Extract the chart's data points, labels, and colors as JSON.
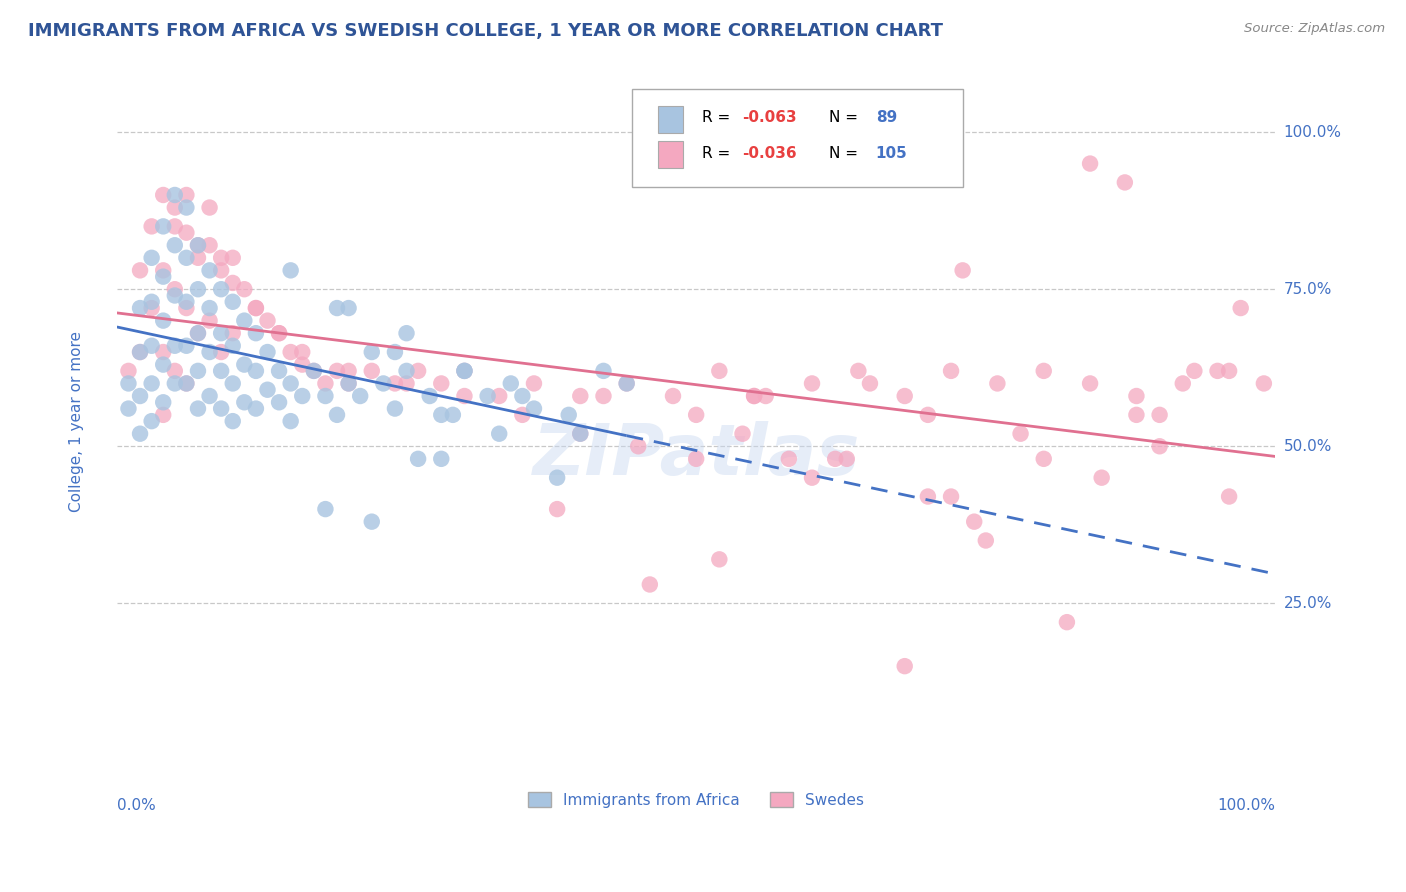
{
  "title": "IMMIGRANTS FROM AFRICA VS SWEDISH COLLEGE, 1 YEAR OR MORE CORRELATION CHART",
  "source_text": "Source: ZipAtlas.com",
  "ylabel": "College, 1 year or more",
  "x_label_bottom_left": "0.0%",
  "x_label_bottom_right": "100.0%",
  "y_tick_labels": [
    "25.0%",
    "50.0%",
    "75.0%",
    "100.0%"
  ],
  "y_tick_values": [
    0.25,
    0.5,
    0.75,
    1.0
  ],
  "legend_label1": "Immigrants from Africa",
  "legend_label2": "Swedes",
  "R1": -0.063,
  "N1": 89,
  "R2": -0.036,
  "N2": 105,
  "color1": "#a8c4e0",
  "color2": "#f4a8c0",
  "trend_color1": "#4472c4",
  "trend_color2": "#e07090",
  "watermark": "ZIPatlas",
  "background_color": "#ffffff",
  "grid_color": "#c8c8c8",
  "title_color": "#2F5496",
  "axis_label_color": "#4472c4",
  "scatter1_x": [
    0.01,
    0.01,
    0.02,
    0.02,
    0.02,
    0.02,
    0.03,
    0.03,
    0.03,
    0.03,
    0.03,
    0.04,
    0.04,
    0.04,
    0.04,
    0.04,
    0.05,
    0.05,
    0.05,
    0.05,
    0.05,
    0.06,
    0.06,
    0.06,
    0.06,
    0.06,
    0.07,
    0.07,
    0.07,
    0.07,
    0.07,
    0.08,
    0.08,
    0.08,
    0.08,
    0.09,
    0.09,
    0.09,
    0.09,
    0.1,
    0.1,
    0.1,
    0.1,
    0.11,
    0.11,
    0.11,
    0.12,
    0.12,
    0.12,
    0.13,
    0.13,
    0.14,
    0.14,
    0.15,
    0.15,
    0.16,
    0.17,
    0.18,
    0.19,
    0.2,
    0.21,
    0.22,
    0.23,
    0.24,
    0.25,
    0.27,
    0.28,
    0.3,
    0.32,
    0.34,
    0.36,
    0.39,
    0.42,
    0.28,
    0.33,
    0.38,
    0.2,
    0.25,
    0.3,
    0.18,
    0.22,
    0.26,
    0.15,
    0.19,
    0.24,
    0.29,
    0.35,
    0.4,
    0.44
  ],
  "scatter1_y": [
    0.6,
    0.56,
    0.72,
    0.65,
    0.58,
    0.52,
    0.8,
    0.73,
    0.66,
    0.6,
    0.54,
    0.85,
    0.77,
    0.7,
    0.63,
    0.57,
    0.9,
    0.82,
    0.74,
    0.66,
    0.6,
    0.88,
    0.8,
    0.73,
    0.66,
    0.6,
    0.82,
    0.75,
    0.68,
    0.62,
    0.56,
    0.78,
    0.72,
    0.65,
    0.58,
    0.75,
    0.68,
    0.62,
    0.56,
    0.73,
    0.66,
    0.6,
    0.54,
    0.7,
    0.63,
    0.57,
    0.68,
    0.62,
    0.56,
    0.65,
    0.59,
    0.62,
    0.57,
    0.6,
    0.54,
    0.58,
    0.62,
    0.58,
    0.55,
    0.6,
    0.58,
    0.65,
    0.6,
    0.56,
    0.62,
    0.58,
    0.55,
    0.62,
    0.58,
    0.6,
    0.56,
    0.55,
    0.62,
    0.48,
    0.52,
    0.45,
    0.72,
    0.68,
    0.62,
    0.4,
    0.38,
    0.48,
    0.78,
    0.72,
    0.65,
    0.55,
    0.58,
    0.52,
    0.6
  ],
  "scatter2_x": [
    0.01,
    0.02,
    0.02,
    0.03,
    0.03,
    0.04,
    0.04,
    0.04,
    0.05,
    0.05,
    0.05,
    0.06,
    0.06,
    0.06,
    0.07,
    0.07,
    0.08,
    0.08,
    0.09,
    0.09,
    0.1,
    0.1,
    0.11,
    0.12,
    0.13,
    0.14,
    0.15,
    0.16,
    0.17,
    0.18,
    0.19,
    0.2,
    0.22,
    0.24,
    0.26,
    0.28,
    0.3,
    0.33,
    0.36,
    0.4,
    0.44,
    0.48,
    0.52,
    0.56,
    0.6,
    0.64,
    0.68,
    0.72,
    0.76,
    0.8,
    0.84,
    0.88,
    0.92,
    0.96,
    0.99,
    0.5,
    0.55,
    0.62,
    0.7,
    0.78,
    0.85,
    0.9,
    0.95,
    0.04,
    0.05,
    0.06,
    0.07,
    0.08,
    0.09,
    0.1,
    0.12,
    0.14,
    0.16,
    0.2,
    0.25,
    0.3,
    0.35,
    0.4,
    0.45,
    0.5,
    0.6,
    0.7,
    0.8,
    0.9,
    0.55,
    0.65,
    0.75,
    0.38,
    0.46,
    0.54,
    0.63,
    0.72,
    0.82,
    0.52,
    0.68,
    0.84,
    0.93,
    0.73,
    0.87,
    0.97,
    0.42,
    0.58,
    0.74,
    0.88,
    0.96
  ],
  "scatter2_y": [
    0.62,
    0.78,
    0.65,
    0.85,
    0.72,
    0.9,
    0.78,
    0.65,
    0.88,
    0.75,
    0.62,
    0.84,
    0.72,
    0.6,
    0.8,
    0.68,
    0.82,
    0.7,
    0.78,
    0.65,
    0.8,
    0.68,
    0.75,
    0.72,
    0.7,
    0.68,
    0.65,
    0.63,
    0.62,
    0.6,
    0.62,
    0.6,
    0.62,
    0.6,
    0.62,
    0.6,
    0.62,
    0.58,
    0.6,
    0.58,
    0.6,
    0.58,
    0.62,
    0.58,
    0.6,
    0.62,
    0.58,
    0.62,
    0.6,
    0.62,
    0.6,
    0.58,
    0.6,
    0.62,
    0.6,
    0.55,
    0.58,
    0.48,
    0.55,
    0.52,
    0.45,
    0.5,
    0.62,
    0.55,
    0.85,
    0.9,
    0.82,
    0.88,
    0.8,
    0.76,
    0.72,
    0.68,
    0.65,
    0.62,
    0.6,
    0.58,
    0.55,
    0.52,
    0.5,
    0.48,
    0.45,
    0.42,
    0.48,
    0.55,
    0.58,
    0.6,
    0.35,
    0.4,
    0.28,
    0.52,
    0.48,
    0.42,
    0.22,
    0.32,
    0.15,
    0.95,
    0.62,
    0.78,
    0.92,
    0.72,
    0.58,
    0.48,
    0.38,
    0.55,
    0.42
  ]
}
